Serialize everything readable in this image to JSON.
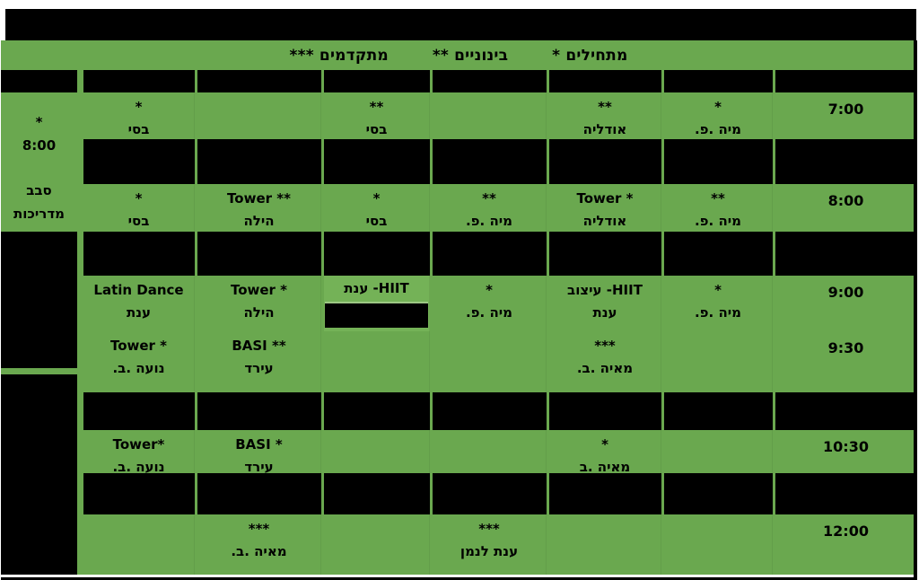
{
  "title_bar": {
    "text": ""
  },
  "legend": {
    "text": "מתחילים *        בינוניים **        מתקדמים ***",
    "levels": [
      {
        "label": "מתחילים",
        "stars": "*"
      },
      {
        "label": "בינוניים",
        "stars": "**"
      },
      {
        "label": "מתקדמים",
        "stars": "***"
      }
    ]
  },
  "colors": {
    "green": "#6aa84f",
    "highlight_green": "#74b257",
    "black": "#000000"
  },
  "left_column": {
    "star": "*",
    "time": "8:00",
    "rotation_line1": "סבב",
    "rotation_line2": "מדריכות"
  },
  "schedule": {
    "times": [
      "7:00",
      "8:00",
      "9:00",
      "9:30",
      "10:30",
      "12:00"
    ],
    "rows": [
      {
        "type": "day-header"
      },
      {
        "type": "classes",
        "time": "7:00",
        "cells": [
          {
            "c": "*",
            "i": "מיה .פ."
          },
          {
            "c": "**",
            "i": "אודליה"
          },
          {},
          {
            "c": "**",
            "i": "בסי"
          },
          {},
          {
            "c": "*",
            "i": "בסי"
          }
        ]
      },
      {
        "type": "spacer"
      },
      {
        "type": "classes",
        "time": "8:00",
        "cells": [
          {
            "c": "**",
            "i": "מיה .פ."
          },
          {
            "c": "Tower *",
            "i": "אודליה",
            "cdir": "ltr"
          },
          {
            "c": "**",
            "i": "מיה .פ."
          },
          {
            "c": "*",
            "i": "בסי"
          },
          {
            "c": "Tower **",
            "i": "הילה",
            "cdir": "ltr"
          },
          {
            "c": "*",
            "i": "בסי"
          }
        ]
      },
      {
        "type": "spacer"
      },
      {
        "type": "classes",
        "time": "9:00",
        "cells": [
          {
            "c": "*",
            "i": "מיה .פ."
          },
          {
            "c": "HIIT- עיצוב",
            "i": "ענת"
          },
          {
            "c": "*",
            "i": "מיה .פ."
          },
          {
            "c": "HIIT- ענת",
            "blackbox": true,
            "highlight": true
          },
          {
            "c": "Tower *",
            "i": "הילה",
            "cdir": "ltr"
          },
          {
            "c": "Latin Dance",
            "i": "ענת",
            "cdir": "ltr"
          }
        ]
      },
      {
        "type": "classes",
        "time": "9:30",
        "cells": [
          {},
          {
            "c": "***",
            "i": "מאיה .ב."
          },
          {},
          {},
          {
            "c": "BASI **",
            "i": "עירד",
            "cdir": "ltr"
          },
          {
            "c": "Tower *",
            "i": "נועה .ב.",
            "cdir": "ltr"
          }
        ]
      },
      {
        "type": "spacer"
      },
      {
        "type": "classes",
        "time": "10:30",
        "cells": [
          {},
          {
            "c": "*",
            "i": "מאיה .ב"
          },
          {},
          {},
          {
            "c": "BASI *",
            "i": "עירד",
            "cdir": "ltr"
          },
          {
            "c": "Tower*",
            "i": "נועה .ב.",
            "cdir": "ltr"
          }
        ]
      },
      {
        "type": "spacer"
      },
      {
        "type": "classes",
        "time": "12:00",
        "cells": [
          {},
          {},
          {
            "c": "***",
            "i": "ענת לנמן"
          },
          {},
          {
            "c": "***",
            "i": "מאיה .ב."
          },
          {}
        ]
      }
    ]
  }
}
